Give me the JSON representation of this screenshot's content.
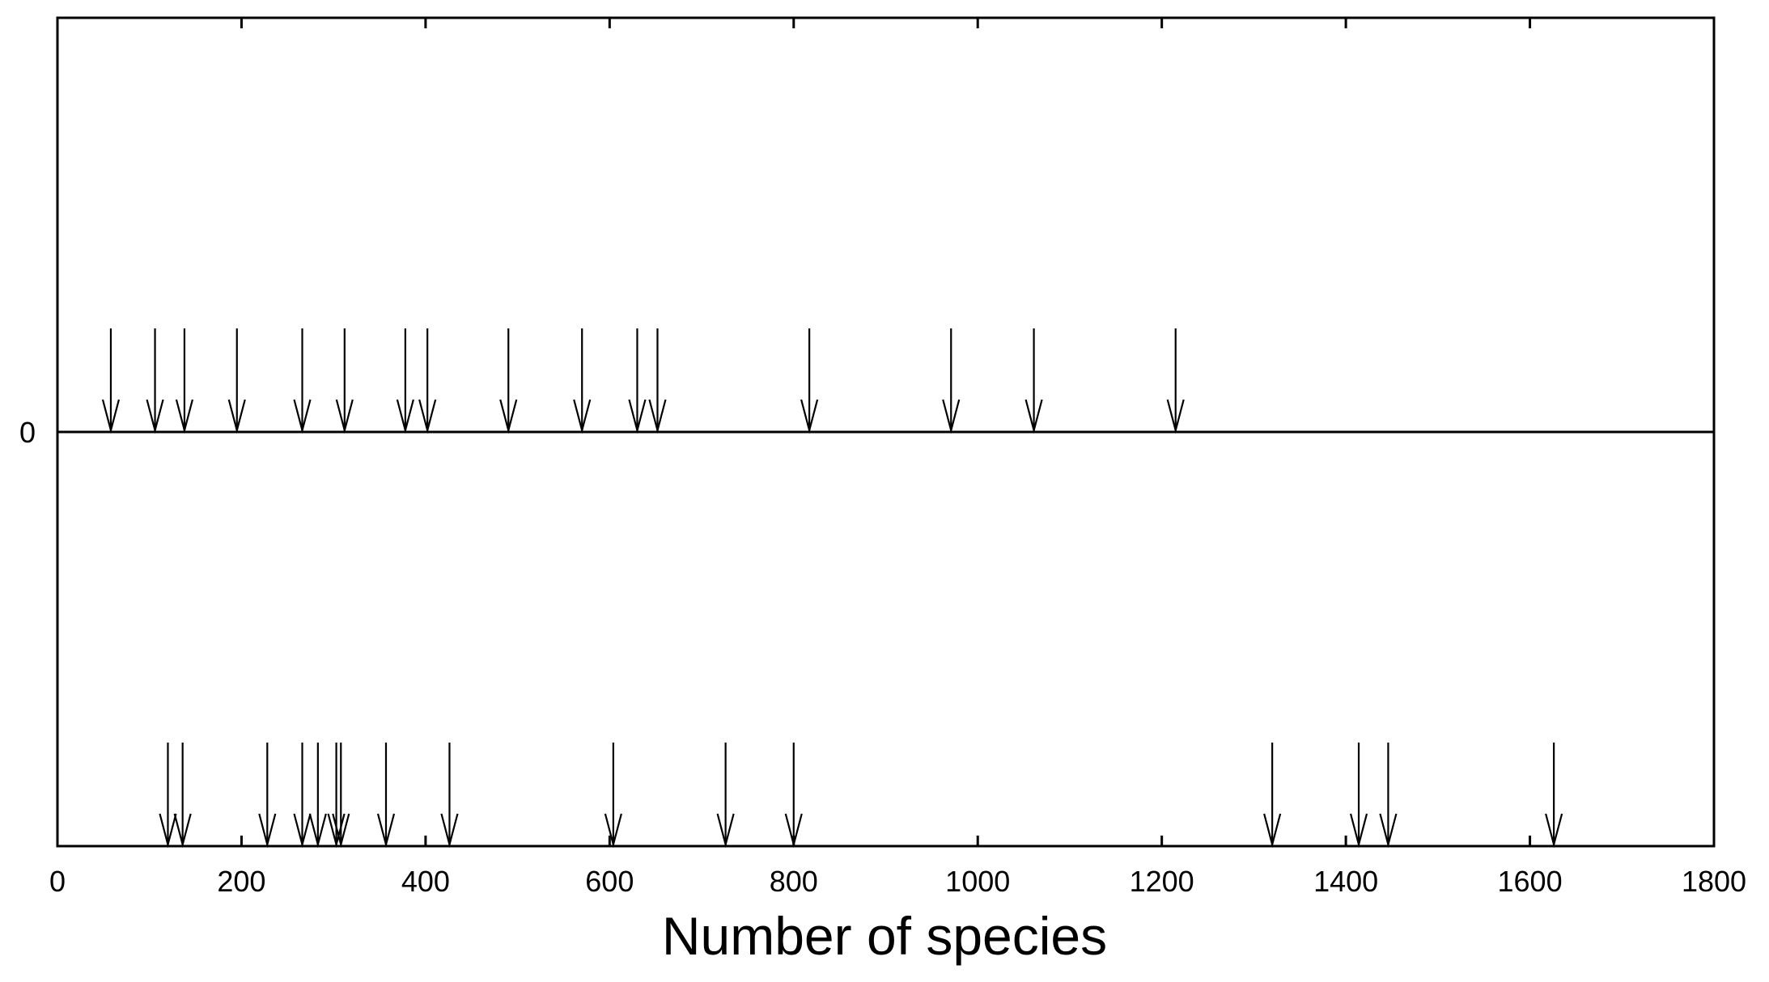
{
  "chart_data": {
    "type": "scatter",
    "xlabel": "Number of species",
    "xlim": [
      0,
      1800
    ],
    "x_ticks": [
      "0",
      "200",
      "400",
      "600",
      "800",
      "1000",
      "1200",
      "1400",
      "1600",
      "1800"
    ],
    "y_ticks": [
      "0"
    ],
    "grid": false,
    "series": [
      {
        "position": "above-zero-line",
        "marker": "down-arrow",
        "x": [
          58,
          106,
          138,
          195,
          266,
          312,
          378,
          402,
          490,
          570,
          630,
          652,
          817,
          971,
          1061,
          1215
        ]
      },
      {
        "position": "bottom-axis",
        "marker": "down-arrow",
        "x": [
          120,
          136,
          228,
          266,
          283,
          303,
          308,
          357,
          426,
          604,
          726,
          800,
          1320,
          1414,
          1446,
          1626
        ]
      }
    ]
  }
}
